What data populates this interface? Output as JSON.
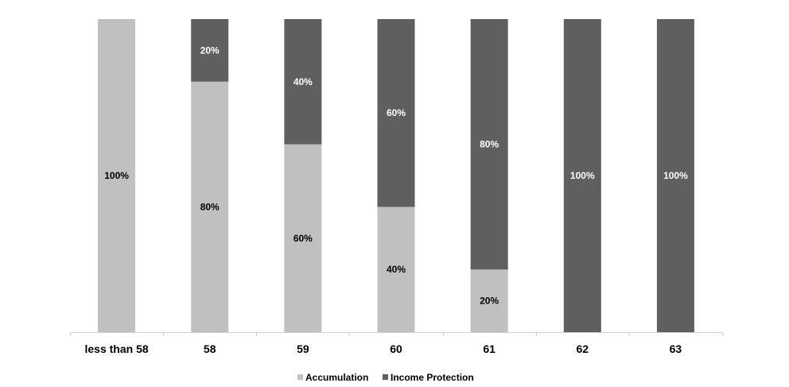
{
  "chart_data": {
    "type": "bar",
    "stacked": true,
    "categories": [
      "less than 58",
      "58",
      "59",
      "60",
      "61",
      "62",
      "63"
    ],
    "series": [
      {
        "name": "Accumulation",
        "values": [
          100,
          80,
          60,
          40,
          20,
          0,
          0
        ],
        "labels": [
          "100%",
          "80%",
          "60%",
          "40%",
          "20%",
          "",
          ""
        ],
        "color": "#c0c0c0"
      },
      {
        "name": "Income Protection",
        "values": [
          0,
          20,
          40,
          60,
          80,
          100,
          100
        ],
        "labels": [
          "",
          "20%",
          "40%",
          "60%",
          "80%",
          "100%",
          "100%"
        ],
        "color": "#5f5f5f"
      }
    ],
    "ylim": [
      0,
      100
    ],
    "grid": false,
    "legend_position": "bottom"
  }
}
